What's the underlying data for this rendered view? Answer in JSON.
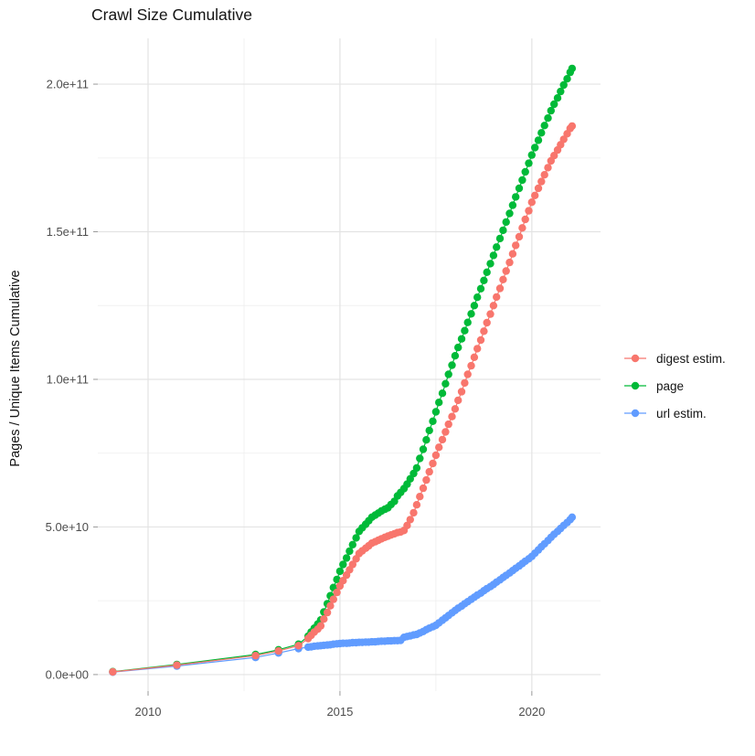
{
  "title": "Crawl Size Cumulative",
  "axes": {
    "y_title": "Pages / Unique Items Cumulative",
    "y_ticks": [
      "0.0e+00",
      "5.0e+10",
      "1.0e+11",
      "1.5e+11",
      "2.0e+11"
    ],
    "x_ticks": [
      "2010",
      "2015",
      "2020"
    ]
  },
  "legend": {
    "items": [
      {
        "label": "digest estim.",
        "color": "#F8766D"
      },
      {
        "label": "page",
        "color": "#00BA38"
      },
      {
        "label": "url estim.",
        "color": "#619CFF"
      }
    ]
  },
  "chart_data": {
    "type": "line",
    "title": "Crawl Size Cumulative",
    "xlabel": "",
    "ylabel": "Pages / Unique Items Cumulative",
    "y_unit": "items, values below given in billions (1e9)",
    "x_unit": "year (fractional = month of crawl)",
    "grid": true,
    "legend_position": "right",
    "xlim": [
      2008.69,
      2021.79
    ],
    "ylim_e9": [
      -5.6,
      215.5
    ],
    "x_major": [
      2010,
      2015,
      2020
    ],
    "x_minor": [
      2012.5,
      2017.5
    ],
    "y_major_e9": [
      0,
      50,
      100,
      150,
      200
    ],
    "y_minor_e9": [
      25,
      75,
      125,
      175
    ],
    "series": [
      {
        "id": "digest-estim",
        "name": "digest estim.",
        "color": "#F8766D",
        "z": 2,
        "points": [
          [
            2009.08,
            0.9
          ],
          [
            2010.75,
            3.2
          ],
          [
            2012.8,
            6.4
          ],
          [
            2013.4,
            8.0
          ],
          [
            2013.92,
            9.8
          ],
          [
            2014.17,
            12.2
          ],
          [
            2014.25,
            13.3
          ],
          [
            2014.33,
            14.4
          ],
          [
            2014.42,
            15.4
          ],
          [
            2014.5,
            16.5
          ],
          [
            2014.58,
            18.8
          ],
          [
            2014.67,
            21.0
          ],
          [
            2014.75,
            23.3
          ],
          [
            2014.83,
            25.5
          ],
          [
            2014.92,
            27.8
          ],
          [
            2015.0,
            30.0
          ],
          [
            2015.08,
            31.8
          ],
          [
            2015.17,
            33.7
          ],
          [
            2015.25,
            35.5
          ],
          [
            2015.33,
            37.3
          ],
          [
            2015.42,
            39.2
          ],
          [
            2015.5,
            41.0
          ],
          [
            2015.58,
            41.9
          ],
          [
            2015.67,
            42.8
          ],
          [
            2015.75,
            43.6
          ],
          [
            2015.83,
            44.5
          ],
          [
            2015.92,
            45.0
          ],
          [
            2016.0,
            45.5
          ],
          [
            2016.08,
            46.0
          ],
          [
            2016.17,
            46.5
          ],
          [
            2016.25,
            46.9
          ],
          [
            2016.33,
            47.3
          ],
          [
            2016.42,
            47.7
          ],
          [
            2016.5,
            48.1
          ],
          [
            2016.58,
            48.3
          ],
          [
            2016.67,
            48.8
          ],
          [
            2016.75,
            50.5
          ],
          [
            2016.83,
            52.5
          ],
          [
            2016.92,
            54.8
          ],
          [
            2017.0,
            57.5
          ],
          [
            2017.08,
            60.3
          ],
          [
            2017.17,
            63.1
          ],
          [
            2017.25,
            65.9
          ],
          [
            2017.33,
            68.7
          ],
          [
            2017.42,
            71.5
          ],
          [
            2017.5,
            74.3
          ],
          [
            2017.58,
            77.0
          ],
          [
            2017.67,
            79.6
          ],
          [
            2017.75,
            82.2
          ],
          [
            2017.83,
            84.8
          ],
          [
            2017.92,
            87.4
          ],
          [
            2018.0,
            90.0
          ],
          [
            2018.08,
            92.9
          ],
          [
            2018.17,
            95.8
          ],
          [
            2018.25,
            98.8
          ],
          [
            2018.33,
            101.7
          ],
          [
            2018.42,
            104.6
          ],
          [
            2018.5,
            107.5
          ],
          [
            2018.58,
            110.4
          ],
          [
            2018.67,
            113.3
          ],
          [
            2018.75,
            116.3
          ],
          [
            2018.83,
            119.2
          ],
          [
            2018.92,
            122.1
          ],
          [
            2019.0,
            125.0
          ],
          [
            2019.08,
            127.9
          ],
          [
            2019.17,
            130.8
          ],
          [
            2019.25,
            133.8
          ],
          [
            2019.33,
            136.7
          ],
          [
            2019.42,
            139.6
          ],
          [
            2019.5,
            142.5
          ],
          [
            2019.58,
            145.4
          ],
          [
            2019.67,
            148.3
          ],
          [
            2019.75,
            151.3
          ],
          [
            2019.83,
            154.2
          ],
          [
            2019.92,
            157.1
          ],
          [
            2020.0,
            160.0
          ],
          [
            2020.08,
            162.3
          ],
          [
            2020.17,
            164.7
          ],
          [
            2020.25,
            167.0
          ],
          [
            2020.33,
            169.3
          ],
          [
            2020.42,
            171.7
          ],
          [
            2020.5,
            174.0
          ],
          [
            2020.58,
            175.8
          ],
          [
            2020.67,
            177.7
          ],
          [
            2020.75,
            179.5
          ],
          [
            2020.83,
            181.3
          ],
          [
            2020.92,
            183.2
          ],
          [
            2021.0,
            185.0
          ],
          [
            2021.05,
            185.8
          ]
        ]
      },
      {
        "id": "page",
        "name": "page",
        "color": "#00BA38",
        "z": 0,
        "points": [
          [
            2009.08,
            1.0
          ],
          [
            2010.75,
            3.4
          ],
          [
            2012.8,
            6.8
          ],
          [
            2013.4,
            8.4
          ],
          [
            2013.92,
            10.3
          ],
          [
            2014.17,
            13.0
          ],
          [
            2014.25,
            14.4
          ],
          [
            2014.33,
            15.7
          ],
          [
            2014.42,
            17.1
          ],
          [
            2014.5,
            18.5
          ],
          [
            2014.58,
            21.2
          ],
          [
            2014.67,
            24.0
          ],
          [
            2014.75,
            26.7
          ],
          [
            2014.83,
            29.5
          ],
          [
            2014.92,
            32.2
          ],
          [
            2015.0,
            35.0
          ],
          [
            2015.08,
            37.3
          ],
          [
            2015.17,
            39.5
          ],
          [
            2015.25,
            41.8
          ],
          [
            2015.33,
            44.0
          ],
          [
            2015.42,
            46.3
          ],
          [
            2015.5,
            48.5
          ],
          [
            2015.58,
            49.7
          ],
          [
            2015.67,
            50.9
          ],
          [
            2015.75,
            52.1
          ],
          [
            2015.83,
            53.3
          ],
          [
            2015.92,
            54.0
          ],
          [
            2016.0,
            54.7
          ],
          [
            2016.08,
            55.4
          ],
          [
            2016.17,
            56.0
          ],
          [
            2016.25,
            56.5
          ],
          [
            2016.33,
            57.6
          ],
          [
            2016.42,
            58.7
          ],
          [
            2016.5,
            60.5
          ],
          [
            2016.58,
            61.7
          ],
          [
            2016.67,
            63.0
          ],
          [
            2016.75,
            64.5
          ],
          [
            2016.83,
            66.3
          ],
          [
            2016.92,
            68.1
          ],
          [
            2017.0,
            70.0
          ],
          [
            2017.08,
            73.2
          ],
          [
            2017.17,
            76.3
          ],
          [
            2017.25,
            79.5
          ],
          [
            2017.33,
            82.7
          ],
          [
            2017.42,
            85.8
          ],
          [
            2017.5,
            89.0
          ],
          [
            2017.58,
            92.2
          ],
          [
            2017.67,
            95.3
          ],
          [
            2017.75,
            98.5
          ],
          [
            2017.83,
            101.7
          ],
          [
            2017.92,
            104.8
          ],
          [
            2018.0,
            108.0
          ],
          [
            2018.08,
            110.8
          ],
          [
            2018.17,
            113.7
          ],
          [
            2018.25,
            116.5
          ],
          [
            2018.33,
            119.3
          ],
          [
            2018.42,
            122.2
          ],
          [
            2018.5,
            125.0
          ],
          [
            2018.58,
            127.8
          ],
          [
            2018.67,
            130.7
          ],
          [
            2018.75,
            133.5
          ],
          [
            2018.83,
            136.3
          ],
          [
            2018.92,
            139.2
          ],
          [
            2019.0,
            142.0
          ],
          [
            2019.08,
            144.8
          ],
          [
            2019.17,
            147.7
          ],
          [
            2019.25,
            150.5
          ],
          [
            2019.33,
            153.3
          ],
          [
            2019.42,
            156.2
          ],
          [
            2019.5,
            159.0
          ],
          [
            2019.58,
            161.8
          ],
          [
            2019.67,
            164.7
          ],
          [
            2019.75,
            167.5
          ],
          [
            2019.83,
            170.3
          ],
          [
            2019.92,
            173.2
          ],
          [
            2020.0,
            176.0
          ],
          [
            2020.08,
            178.5
          ],
          [
            2020.17,
            181.0
          ],
          [
            2020.25,
            183.5
          ],
          [
            2020.33,
            186.0
          ],
          [
            2020.42,
            188.5
          ],
          [
            2020.5,
            191.0
          ],
          [
            2020.58,
            193.2
          ],
          [
            2020.67,
            195.3
          ],
          [
            2020.75,
            197.5
          ],
          [
            2020.83,
            199.7
          ],
          [
            2020.92,
            201.8
          ],
          [
            2021.0,
            204.0
          ],
          [
            2021.05,
            205.3
          ]
        ]
      },
      {
        "id": "url-estim",
        "name": "url estim.",
        "color": "#619CFF",
        "z": 1,
        "points": [
          [
            2009.08,
            0.8
          ],
          [
            2010.75,
            2.9
          ],
          [
            2012.8,
            5.8
          ],
          [
            2013.4,
            7.3
          ],
          [
            2013.92,
            8.8
          ],
          [
            2014.17,
            9.3
          ],
          [
            2014.25,
            9.4
          ],
          [
            2014.33,
            9.6
          ],
          [
            2014.42,
            9.7
          ],
          [
            2014.5,
            9.8
          ],
          [
            2014.58,
            9.9
          ],
          [
            2014.67,
            10.0
          ],
          [
            2014.75,
            10.1
          ],
          [
            2014.83,
            10.3
          ],
          [
            2014.92,
            10.4
          ],
          [
            2015.0,
            10.5
          ],
          [
            2015.08,
            10.6
          ],
          [
            2015.17,
            10.6
          ],
          [
            2015.25,
            10.7
          ],
          [
            2015.33,
            10.8
          ],
          [
            2015.42,
            10.8
          ],
          [
            2015.5,
            10.9
          ],
          [
            2015.58,
            10.9
          ],
          [
            2015.67,
            11.0
          ],
          [
            2015.75,
            11.0
          ],
          [
            2015.83,
            11.1
          ],
          [
            2015.92,
            11.1
          ],
          [
            2016.0,
            11.2
          ],
          [
            2016.08,
            11.3
          ],
          [
            2016.17,
            11.3
          ],
          [
            2016.25,
            11.4
          ],
          [
            2016.33,
            11.4
          ],
          [
            2016.42,
            11.5
          ],
          [
            2016.5,
            11.5
          ],
          [
            2016.58,
            11.6
          ],
          [
            2016.67,
            12.6
          ],
          [
            2016.75,
            12.9
          ],
          [
            2016.83,
            13.1
          ],
          [
            2016.92,
            13.4
          ],
          [
            2017.0,
            13.6
          ],
          [
            2017.08,
            14.1
          ],
          [
            2017.17,
            14.6
          ],
          [
            2017.25,
            15.2
          ],
          [
            2017.33,
            15.7
          ],
          [
            2017.42,
            16.2
          ],
          [
            2017.5,
            16.7
          ],
          [
            2017.58,
            17.5
          ],
          [
            2017.67,
            18.4
          ],
          [
            2017.75,
            19.2
          ],
          [
            2017.83,
            20.0
          ],
          [
            2017.92,
            20.9
          ],
          [
            2018.0,
            21.7
          ],
          [
            2018.08,
            22.5
          ],
          [
            2018.17,
            23.2
          ],
          [
            2018.25,
            24.0
          ],
          [
            2018.33,
            24.7
          ],
          [
            2018.42,
            25.5
          ],
          [
            2018.5,
            26.2
          ],
          [
            2018.58,
            26.9
          ],
          [
            2018.67,
            27.6
          ],
          [
            2018.75,
            28.4
          ],
          [
            2018.83,
            29.1
          ],
          [
            2018.92,
            29.8
          ],
          [
            2019.0,
            30.5
          ],
          [
            2019.08,
            31.3
          ],
          [
            2019.17,
            32.1
          ],
          [
            2019.25,
            32.9
          ],
          [
            2019.33,
            33.6
          ],
          [
            2019.42,
            34.4
          ],
          [
            2019.5,
            35.2
          ],
          [
            2019.58,
            36.0
          ],
          [
            2019.67,
            36.8
          ],
          [
            2019.75,
            37.6
          ],
          [
            2019.83,
            38.4
          ],
          [
            2019.92,
            39.2
          ],
          [
            2020.0,
            40.0
          ],
          [
            2020.08,
            41.1
          ],
          [
            2020.17,
            42.2
          ],
          [
            2020.25,
            43.3
          ],
          [
            2020.33,
            44.3
          ],
          [
            2020.42,
            45.4
          ],
          [
            2020.5,
            46.5
          ],
          [
            2020.58,
            47.5
          ],
          [
            2020.67,
            48.5
          ],
          [
            2020.75,
            49.5
          ],
          [
            2020.83,
            50.5
          ],
          [
            2020.92,
            51.5
          ],
          [
            2021.0,
            52.5
          ],
          [
            2021.05,
            53.3
          ]
        ]
      }
    ]
  }
}
